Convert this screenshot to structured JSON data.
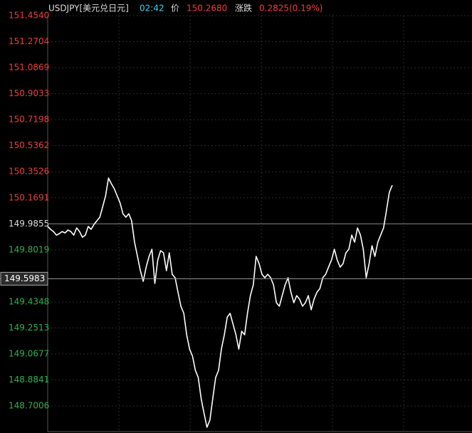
{
  "chart_data": {
    "type": "line",
    "header": {
      "symbol": "USDJPY[美元兑日元]",
      "time": "02:42",
      "price_label": "价",
      "price": "150.2680",
      "change_label": "涨跌",
      "change": "0.2825(0.19%)"
    },
    "color": "#ffffff",
    "up_color": "#e8403c",
    "down_color": "#2fb24c",
    "ref_color": "#dddddd",
    "grid": true,
    "prev_close": 149.9855,
    "cursor": 149.5983,
    "ylim": [
      148.52,
      151.454
    ],
    "yticks": [
      {
        "value": 151.454,
        "label": "151.4540"
      },
      151.2704,
      151.0869,
      150.9033,
      150.7198,
      150.5362,
      150.3526,
      150.1691,
      149.9855,
      149.8019,
      149.4348,
      149.2513,
      149.0677,
      148.8841,
      148.7006
    ],
    "values": [
      149.967,
      149.947,
      149.931,
      149.906,
      149.916,
      149.931,
      149.921,
      149.942,
      149.931,
      149.906,
      149.957,
      149.931,
      149.891,
      149.906,
      149.967,
      149.947,
      149.982,
      150.007,
      150.032,
      150.107,
      150.183,
      150.308,
      150.268,
      150.233,
      150.183,
      150.132,
      150.057,
      150.032,
      150.057,
      150.007,
      149.856,
      149.756,
      149.655,
      149.58,
      149.68,
      149.756,
      149.806,
      149.565,
      149.73,
      149.796,
      149.781,
      149.655,
      149.781,
      149.63,
      149.605,
      149.504,
      149.404,
      149.354,
      149.203,
      149.102,
      149.052,
      148.952,
      148.901,
      148.751,
      148.65,
      148.55,
      148.6,
      148.751,
      148.901,
      148.952,
      149.102,
      149.203,
      149.328,
      149.354,
      149.278,
      149.203,
      149.102,
      149.228,
      149.203,
      149.354,
      149.479,
      149.555,
      149.756,
      149.705,
      149.63,
      149.605,
      149.63,
      149.605,
      149.555,
      149.429,
      149.404,
      149.479,
      149.555,
      149.605,
      149.504,
      149.429,
      149.479,
      149.454,
      149.404,
      149.429,
      149.479,
      149.379,
      149.454,
      149.504,
      149.529,
      149.605,
      149.63,
      149.68,
      149.73,
      149.806,
      149.73,
      149.68,
      149.705,
      149.781,
      149.806,
      149.906,
      149.856,
      149.957,
      149.906,
      149.806,
      149.605,
      149.705,
      149.831,
      149.756,
      149.856,
      149.906,
      149.957,
      150.082,
      150.208,
      150.258
    ]
  }
}
